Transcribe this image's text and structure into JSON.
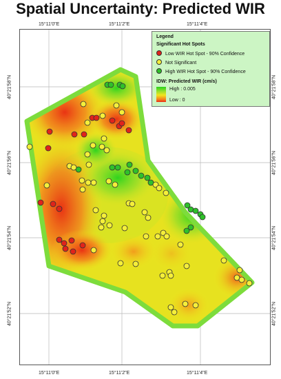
{
  "title": "Spatial Uncertainty: Predicted WIR",
  "coords": {
    "top": [
      "15°11'0\"E",
      "15°11'2\"E",
      "15°11'4\"E"
    ],
    "bottom": [
      "15°11'0\"E",
      "15°11'2\"E",
      "15°11'4\"E"
    ],
    "left": [
      "40°21'58\"N",
      "40°21'56\"N",
      "40°21'54\"N",
      "40°21'52\"N"
    ],
    "right": [
      "40°21'58\"N",
      "40°21'56\"N",
      "40°21'54\"N",
      "40°21'52\"N"
    ]
  },
  "legend": {
    "title": "Legend",
    "hotspot_title": "Significant Hot Spots",
    "items": [
      {
        "label": "Low WIR Hot Spot - 90% Confidence",
        "color": "#e0231b"
      },
      {
        "label": "Not Significant",
        "color": "#f5ef3a"
      },
      {
        "label": "High WIR Hot Spot - 90% Confidence",
        "color": "#2fc02a"
      }
    ],
    "idw_title": "IDW: Predicted WIR (cm/s)",
    "high_label": "High : 0.005",
    "low_label": "Low : 0"
  },
  "colors": {
    "boundary": "#7ddc3c",
    "low": "#ea2a13",
    "mid": "#f2e51c",
    "high": "#27d31e"
  }
}
